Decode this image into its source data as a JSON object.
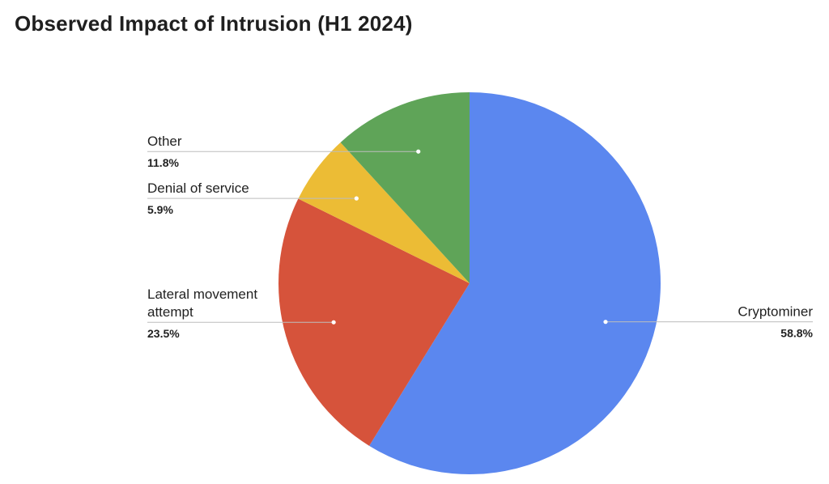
{
  "chart_data": {
    "type": "pie",
    "title": "Observed Impact of Intrusion (H1 2024)",
    "start_angle_deg": 0,
    "direction": "clockwise",
    "slices": [
      {
        "label": "Cryptominer",
        "value": 58.8,
        "value_label": "58.8%",
        "color": "#5b87ef",
        "label_side": "right"
      },
      {
        "label": "Lateral movement attempt",
        "label_lines": [
          "Lateral movement",
          "attempt"
        ],
        "value": 23.5,
        "value_label": "23.5%",
        "color": "#d6533b",
        "label_side": "left"
      },
      {
        "label": "Denial of service",
        "value": 5.9,
        "value_label": "5.9%",
        "color": "#ecbc35",
        "label_side": "left"
      },
      {
        "label": "Other",
        "value": 11.8,
        "value_label": "11.8%",
        "color": "#5fa458",
        "label_side": "left"
      }
    ]
  }
}
